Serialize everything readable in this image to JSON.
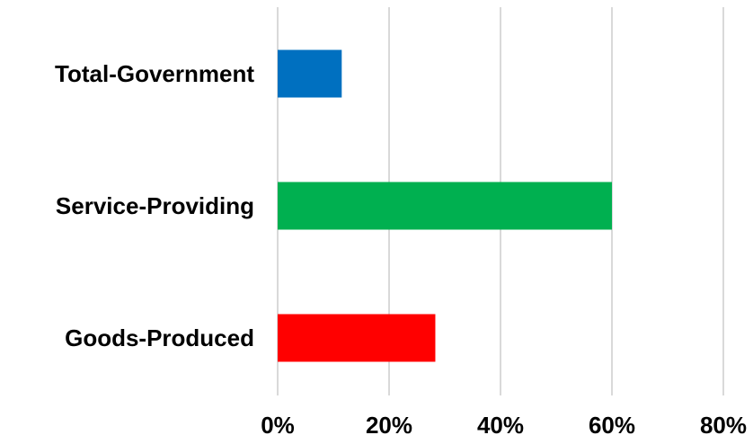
{
  "chart_data": {
    "type": "bar",
    "orientation": "horizontal",
    "categories": [
      "Total-Government",
      "Service-Providing",
      "Goods-Produced"
    ],
    "values": [
      11.5,
      60.0,
      28.3
    ],
    "colors": [
      "#0070C0",
      "#00B050",
      "#FF0000"
    ],
    "xlim": [
      0,
      80
    ],
    "xticks": [
      0,
      20,
      40,
      60,
      80
    ],
    "xtick_labels": [
      "0%",
      "20%",
      "40%",
      "60%",
      "80%"
    ],
    "title": "",
    "xlabel": "",
    "ylabel": "",
    "grid": "vertical",
    "legend": "none"
  }
}
